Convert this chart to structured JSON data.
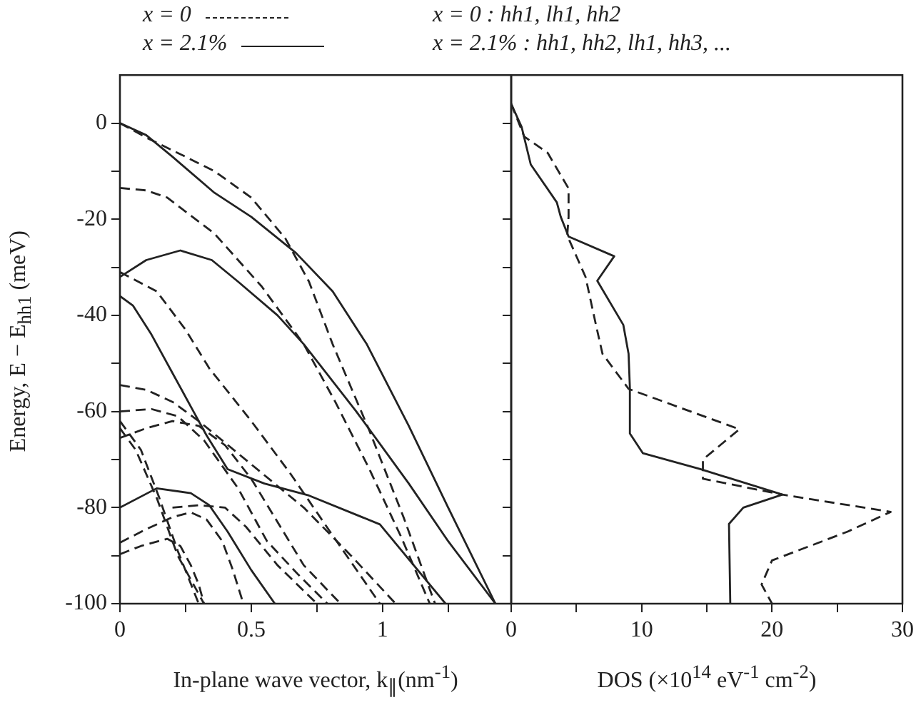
{
  "chart_data": [
    {
      "type": "line",
      "xlabel": "In-plane wave vector, k$_{∥}$(nm$^{-1}$)",
      "ylabel": "Energy, E − E$_{hh1}$ (meV)",
      "xlim": [
        0,
        1.49
      ],
      "ylim": [
        -100,
        10
      ],
      "xticks": [
        0,
        {
          "value": 0.25,
          "label": null
        },
        0.5,
        {
          "value": 0.75,
          "label": null
        },
        1,
        {
          "value": 1.25,
          "label": null
        }
      ],
      "yticks": [
        -100,
        {
          "value": -90,
          "label": null
        },
        -80,
        {
          "value": -70,
          "label": null
        },
        -60,
        {
          "value": -50,
          "label": null
        },
        -40,
        {
          "value": -30,
          "label": null
        },
        -20,
        {
          "value": -10,
          "label": null
        },
        0
      ],
      "grid": false,
      "legend": "top",
      "annotations": [
        "x = 0 : hh1, lh1, hh2",
        "x = 2.1% : hh1, hh2, lh1, hh3, ..."
      ],
      "series": [
        {
          "name": "x = 0",
          "color": "#222222",
          "line_style": "dashed",
          "x": [
            0,
            0.1,
            0.25,
            0.36,
            0.5,
            0.63,
            0.72,
            0.81,
            0.95,
            1.08,
            1.2
          ],
          "values": [
            0,
            -3,
            -7,
            -10,
            -15.5,
            -24,
            -33,
            -46,
            -64,
            -82,
            -100
          ]
        },
        {
          "name": "x = 2.1%",
          "color": "#222222",
          "line_style": "solid",
          "x": [
            0,
            0.1,
            0.2,
            0.36,
            0.5,
            0.67,
            0.81,
            0.94,
            1.1,
            1.25,
            1.43
          ],
          "values": [
            0,
            -2.5,
            -7,
            -14.5,
            -19.5,
            -27,
            -35,
            -46,
            -63,
            -80,
            -100
          ]
        },
        {
          "color": "#222222",
          "line_style": "solid",
          "x": [
            0,
            0.1,
            0.23,
            0.35,
            0.45,
            0.6,
            0.7,
            0.9,
            1.1,
            1.25,
            1.43
          ],
          "values": [
            -32,
            -28.5,
            -26.5,
            -28.5,
            -33,
            -40,
            -46,
            -60,
            -75,
            -87,
            -100
          ]
        },
        {
          "color": "#222222",
          "line_style": "solid",
          "x": [
            0,
            0.05,
            0.12,
            0.2,
            0.28,
            0.33,
            0.41,
            0.55,
            0.72,
            0.99,
            1.24
          ],
          "values": [
            -36,
            -38,
            -44,
            -52,
            -60,
            -65,
            -72,
            -75,
            -77.5,
            -83.5,
            -100
          ]
        },
        {
          "color": "#222222",
          "line_style": "solid",
          "x": [
            0,
            0.14,
            0.27,
            0.34,
            0.41,
            0.5,
            0.59
          ],
          "values": [
            -80,
            -76,
            -77,
            -79.5,
            -85,
            -93,
            -100
          ]
        },
        {
          "color": "#222222",
          "line_style": "dashed",
          "x": [
            0,
            0.1,
            0.18,
            0.36,
            0.54,
            0.7,
            0.82,
            0.95,
            1.07,
            1.18
          ],
          "values": [
            -13.5,
            -14,
            -15.5,
            -23,
            -34,
            -46,
            -58,
            -72,
            -86,
            -100
          ]
        },
        {
          "color": "#222222",
          "line_style": "dashed",
          "x": [
            0,
            0.14,
            0.25,
            0.34,
            0.5,
            0.65,
            0.8,
            0.99
          ],
          "values": [
            -31,
            -35,
            -43,
            -51,
            -62,
            -73,
            -85,
            -100
          ]
        },
        {
          "color": "#222222",
          "line_style": "dashed",
          "x": [
            0,
            0.1,
            0.2,
            0.3,
            0.5,
            0.7,
            0.88,
            1.05
          ],
          "values": [
            -54.5,
            -55.5,
            -58,
            -62,
            -71,
            -80,
            -90,
            -100
          ]
        },
        {
          "color": "#222222",
          "line_style": "dashed",
          "x": [
            0,
            0.12,
            0.22,
            0.32,
            0.45,
            0.56,
            0.68,
            0.79
          ],
          "values": [
            -60,
            -59.5,
            -61,
            -66,
            -76,
            -87,
            -94,
            -100
          ]
        },
        {
          "color": "#222222",
          "line_style": "dashed",
          "x": [
            0,
            0.1,
            0.2,
            0.3,
            0.4,
            0.5,
            0.6,
            0.7,
            0.84
          ],
          "values": [
            -65.5,
            -63.5,
            -62,
            -63,
            -67,
            -74,
            -83,
            -92,
            -100
          ]
        },
        {
          "color": "#222222",
          "line_style": "dashed",
          "x": [
            0,
            0.08,
            0.15,
            0.22,
            0.3
          ],
          "values": [
            -62,
            -68,
            -78,
            -89,
            -100
          ]
        },
        {
          "color": "#222222",
          "line_style": "dashed",
          "x": [
            0,
            0.06,
            0.14,
            0.22,
            0.32
          ],
          "values": [
            -63.5,
            -68,
            -78,
            -90,
            -100
          ]
        },
        {
          "color": "#222222",
          "line_style": "dashed",
          "x": [
            0.2,
            0.3,
            0.4,
            0.48,
            0.6,
            0.75
          ],
          "values": [
            -80,
            -79.5,
            -80,
            -84,
            -92,
            -100
          ]
        },
        {
          "color": "#222222",
          "line_style": "dashed",
          "x": [
            0,
            0.1,
            0.2,
            0.27,
            0.33,
            0.39,
            0.43,
            0.47
          ],
          "values": [
            -87.3,
            -84.5,
            -82,
            -81,
            -82.5,
            -87,
            -93,
            -100
          ]
        },
        {
          "color": "#222222",
          "line_style": "dashed",
          "x": [
            0,
            0.08,
            0.18,
            0.23,
            0.27,
            0.3,
            0.32
          ],
          "values": [
            -89.7,
            -88,
            -86.5,
            -88,
            -92,
            -96,
            -100
          ]
        }
      ]
    },
    {
      "type": "line",
      "xlabel": "DOS (×10$^{14}$ eV$^{-1}$ cm$^{-2}$)",
      "xlim": [
        0,
        30
      ],
      "ylim": [
        -100,
        10
      ],
      "tick_labels": "x",
      "grid": false,
      "xticks": [
        0,
        {
          "value": 5,
          "label": null
        },
        10,
        {
          "value": 15,
          "label": null
        },
        20,
        {
          "value": 25,
          "label": null
        },
        30
      ],
      "yticks": [
        {
          "value": -100,
          "label": null
        },
        {
          "value": -90,
          "label": null
        },
        {
          "value": -80,
          "label": null
        },
        {
          "value": -70,
          "label": null
        },
        {
          "value": -60,
          "label": null
        },
        {
          "value": -50,
          "label": null
        },
        {
          "value": -40,
          "label": null
        },
        {
          "value": -30,
          "label": null
        },
        {
          "value": -20,
          "label": null
        },
        {
          "value": -10,
          "label": null
        },
        {
          "value": 0,
          "label": null
        }
      ],
      "series": [
        {
          "color": "#222222",
          "line_style": "solid",
          "x": [
            0,
            0.8,
            1.5,
            3.5,
            3.8,
            4.4,
            7.9,
            6.6,
            8.6,
            9.0,
            9.1,
            9.1,
            10.1,
            14.5,
            20.8,
            17.8,
            16.7,
            16.8
          ],
          "values": [
            4,
            -0.8,
            -8.6,
            -16.5,
            -19.5,
            -23.6,
            -27.7,
            -32.8,
            -42,
            -48,
            -55,
            -64.6,
            -68.7,
            -72,
            -77.3,
            -80,
            -83.4,
            -100
          ]
        },
        {
          "color": "#222222",
          "line_style": "dashed",
          "x": [
            0,
            1.0,
            2.8,
            4.4,
            4.4,
            4.3,
            5.7,
            6.5,
            7.0,
            9.0,
            17.5,
            14.7,
            14.7,
            20.8,
            29.1,
            25.8,
            20,
            19.2,
            20
          ],
          "values": [
            4,
            -2.8,
            -6.2,
            -13.6,
            -19.5,
            -23.4,
            -32,
            -42,
            -48,
            -55.3,
            -63.7,
            -70,
            -74,
            -77.3,
            -80.9,
            -85,
            -91,
            -96,
            -100
          ]
        }
      ]
    }
  ]
}
